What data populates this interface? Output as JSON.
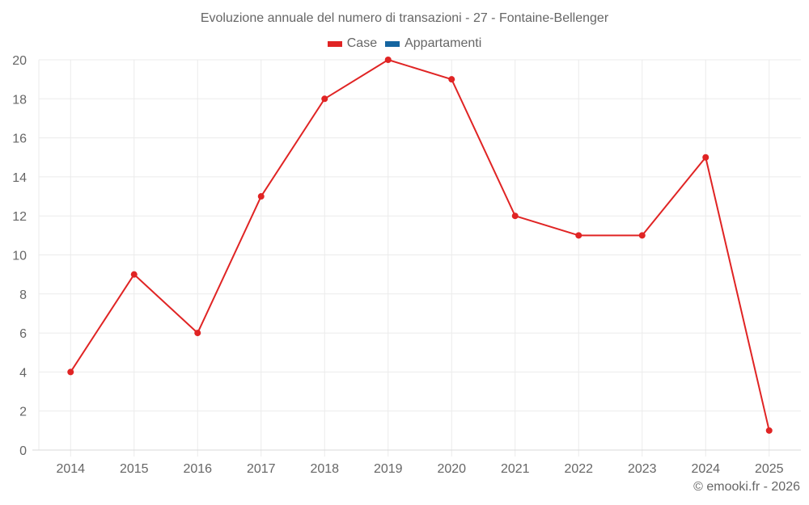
{
  "title": "Evoluzione annuale del numero di transazioni - 27 - Fontaine-Bellenger",
  "legend": [
    {
      "label": "Case",
      "color": "#e02424"
    },
    {
      "label": "Appartamenti",
      "color": "#1565a0"
    }
  ],
  "credit": "© emooki.fr - 2026",
  "colors": {
    "grid": "#ebebeb",
    "axis": "#d9d9d9",
    "series_case": "#e02424"
  },
  "chart_data": {
    "type": "line",
    "title": "Evoluzione annuale del numero di transazioni - 27 - Fontaine-Bellenger",
    "xlabel": "",
    "ylabel": "",
    "categories": [
      "2014",
      "2015",
      "2016",
      "2017",
      "2018",
      "2019",
      "2020",
      "2021",
      "2022",
      "2023",
      "2024",
      "2025"
    ],
    "series": [
      {
        "name": "Case",
        "color": "#e02424",
        "values": [
          4,
          9,
          6,
          13,
          18,
          20,
          19,
          12,
          11,
          11,
          15,
          1
        ]
      },
      {
        "name": "Appartamenti",
        "color": "#1565a0",
        "values": []
      }
    ],
    "ylim": [
      0,
      20
    ],
    "yticks": [
      0,
      2,
      4,
      6,
      8,
      10,
      12,
      14,
      16,
      18,
      20
    ],
    "grid": true,
    "legend_position": "top"
  }
}
